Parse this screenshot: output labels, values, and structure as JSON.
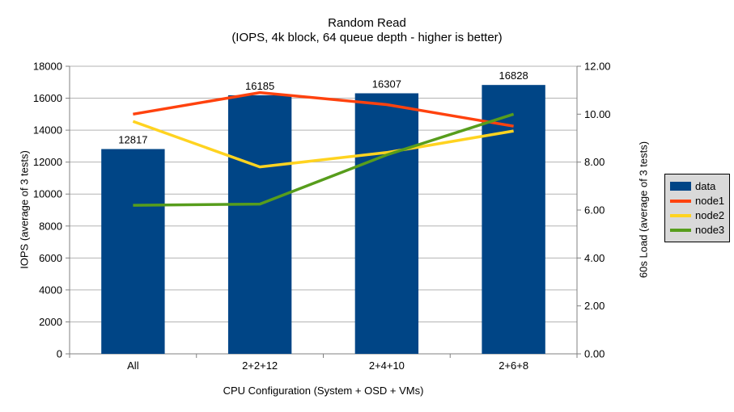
{
  "chart_data": {
    "type": "bar",
    "subtype": "combo-bar-line-dual-axis",
    "title": "Random Read",
    "subtitle": "(IOPS, 4k block, 64 queue depth - higher is better)",
    "xlabel": "CPU Configuration (System + OSD + VMs)",
    "ylabel_left": "IOPS (average of 3 tests)",
    "ylabel_right": "60s Load (average of 3 tests)",
    "categories": [
      "All",
      "2+2+12",
      "2+4+10",
      "2+6+8"
    ],
    "series": [
      {
        "name": "data",
        "type": "bar",
        "axis": "left",
        "color": "#004586",
        "values": [
          12817,
          16185,
          16307,
          16828
        ],
        "value_labels": [
          "12817",
          "16185",
          "16307",
          "16828"
        ]
      },
      {
        "name": "node1",
        "type": "line",
        "axis": "right",
        "color": "#FF420E",
        "values": [
          10.0,
          10.9,
          10.4,
          9.5
        ]
      },
      {
        "name": "node2",
        "type": "line",
        "axis": "right",
        "color": "#FFD320",
        "values": [
          9.7,
          7.8,
          8.4,
          9.3
        ]
      },
      {
        "name": "node3",
        "type": "line",
        "axis": "right",
        "color": "#579D1C",
        "values": [
          6.2,
          6.25,
          8.3,
          10.0
        ]
      }
    ],
    "left_axis": {
      "min": 0,
      "max": 18000,
      "step": 2000,
      "tick_labels": [
        "0",
        "2000",
        "4000",
        "6000",
        "8000",
        "10000",
        "12000",
        "14000",
        "16000",
        "18000"
      ]
    },
    "right_axis": {
      "min": 0,
      "max": 12,
      "step": 2,
      "tick_labels": [
        "0.00",
        "2.00",
        "4.00",
        "6.00",
        "8.00",
        "10.00",
        "12.00"
      ]
    },
    "legend": {
      "position": "right",
      "entries": [
        "data",
        "node1",
        "node2",
        "node3"
      ]
    },
    "grid": "horizontal gridlines at left-axis 2000 steps",
    "colors": {
      "background": "#ffffff",
      "gridline": "#b3b3b3",
      "axis": "#808080",
      "text": "#000000",
      "legend_bg": "#d9d9d9",
      "legend_border": "#000000"
    }
  }
}
